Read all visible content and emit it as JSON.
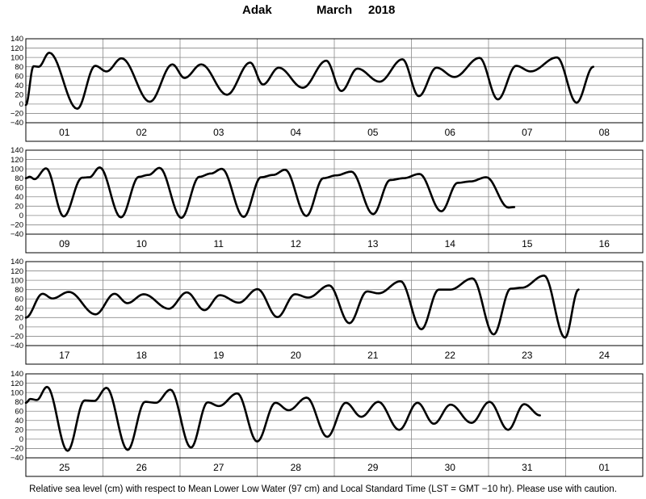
{
  "chart_data": {
    "type": "line",
    "station": "Adak",
    "month": "March",
    "year": "2018",
    "footer": "Relative sea level (cm) with respect to Mean Lower Low Water (97 cm) and Local Standard Time (LST = GMT −10 hr). Please use with caution.",
    "yunit": "cm",
    "ylim": [
      -40,
      140
    ],
    "yticks": [
      "140",
      "120",
      "100",
      "80",
      "60",
      "40",
      "20",
      "0",
      "−20",
      "−40"
    ],
    "grid": true,
    "hours_per_day": 24,
    "line_color": "#000000",
    "panels": [
      {
        "days": [
          "01",
          "02",
          "03",
          "04",
          "05",
          "06",
          "07",
          "08"
        ],
        "extrema": [
          [
            0,
            -2
          ],
          [
            2.4,
            81
          ],
          [
            4,
            80
          ],
          [
            7.3,
            110
          ],
          [
            16,
            -10
          ],
          [
            21.6,
            82
          ],
          [
            25.1,
            70
          ],
          [
            29.8,
            98
          ],
          [
            38.6,
            5
          ],
          [
            45.6,
            85
          ],
          [
            49.4,
            56
          ],
          [
            54.6,
            85
          ],
          [
            62.6,
            20
          ],
          [
            69.8,
            89
          ],
          [
            73.8,
            42
          ],
          [
            78.7,
            78
          ],
          [
            86.2,
            35
          ],
          [
            93.5,
            93
          ],
          [
            98.2,
            28
          ],
          [
            103.2,
            76
          ],
          [
            110.1,
            48
          ],
          [
            117.2,
            96
          ],
          [
            122.3,
            17
          ],
          [
            127.8,
            78
          ],
          [
            133.4,
            58
          ],
          [
            141.2,
            99
          ],
          [
            146.9,
            10
          ],
          [
            152.6,
            82
          ],
          [
            157.1,
            70
          ],
          [
            165.3,
            100
          ],
          [
            171.4,
            3
          ],
          [
            176.6,
            80
          ]
        ]
      },
      {
        "days": [
          "09",
          "10",
          "11",
          "12",
          "13",
          "14",
          "15",
          "16"
        ],
        "extrema": [
          [
            0,
            80
          ],
          [
            1.2,
            83
          ],
          [
            2.7,
            78
          ],
          [
            6.3,
            101
          ],
          [
            11.8,
            -2
          ],
          [
            17.5,
            81
          ],
          [
            19.8,
            82
          ],
          [
            23,
            103
          ],
          [
            29.6,
            -4
          ],
          [
            35.2,
            83
          ],
          [
            38.2,
            87
          ],
          [
            41.6,
            102
          ],
          [
            48.4,
            -5
          ],
          [
            54,
            83
          ],
          [
            57.6,
            90
          ],
          [
            61,
            100
          ],
          [
            67.8,
            -3
          ],
          [
            73.2,
            82
          ],
          [
            77,
            87
          ],
          [
            80.7,
            98
          ],
          [
            87.3,
            -1
          ],
          [
            92.6,
            80
          ],
          [
            96.6,
            86
          ],
          [
            101.3,
            94
          ],
          [
            108.1,
            3
          ],
          [
            113.4,
            76
          ],
          [
            117.6,
            80
          ],
          [
            122.5,
            89
          ],
          [
            129.3,
            9
          ],
          [
            134.4,
            70
          ],
          [
            138.4,
            73
          ],
          [
            143.3,
            82
          ],
          [
            150.2,
            17
          ],
          [
            152,
            18
          ]
        ]
      },
      {
        "days": [
          "17",
          "18",
          "19",
          "20",
          "21",
          "22",
          "23",
          "24"
        ],
        "extrema": [
          [
            0,
            20
          ],
          [
            5.2,
            71
          ],
          [
            8.3,
            61
          ],
          [
            13.4,
            75
          ],
          [
            21.7,
            27
          ],
          [
            27.6,
            71
          ],
          [
            31.6,
            51
          ],
          [
            36.7,
            70
          ],
          [
            44.5,
            39
          ],
          [
            50.1,
            74
          ],
          [
            55.6,
            36
          ],
          [
            60.4,
            68
          ],
          [
            66.3,
            52
          ],
          [
            72.1,
            81
          ],
          [
            78.3,
            21
          ],
          [
            83.8,
            70
          ],
          [
            87.9,
            63
          ],
          [
            94.4,
            89
          ],
          [
            100.7,
            8
          ],
          [
            106.2,
            76
          ],
          [
            109.8,
            72
          ],
          [
            116.6,
            98
          ],
          [
            123.1,
            -5
          ],
          [
            128.5,
            80
          ],
          [
            132.1,
            80
          ],
          [
            139,
            104
          ],
          [
            145.6,
            -16
          ],
          [
            150.9,
            82
          ],
          [
            154.4,
            84
          ],
          [
            161.3,
            110
          ],
          [
            167.8,
            -23
          ],
          [
            172,
            80
          ]
        ]
      },
      {
        "days": [
          "25",
          "26",
          "27",
          "28",
          "29",
          "30",
          "31",
          "01"
        ],
        "extrema": [
          [
            0,
            78
          ],
          [
            1.4,
            86
          ],
          [
            3.4,
            84
          ],
          [
            6.6,
            112
          ],
          [
            13,
            -25
          ],
          [
            18.3,
            83
          ],
          [
            21.3,
            82
          ],
          [
            25.1,
            110
          ],
          [
            31.7,
            -23
          ],
          [
            37.1,
            80
          ],
          [
            40.5,
            78
          ],
          [
            45,
            106
          ],
          [
            51.4,
            -18
          ],
          [
            56.6,
            79
          ],
          [
            60.1,
            71
          ],
          [
            65.8,
            98
          ],
          [
            72,
            -5
          ],
          [
            77.7,
            78
          ],
          [
            81.8,
            62
          ],
          [
            87.4,
            89
          ],
          [
            93.8,
            5
          ],
          [
            99.6,
            78
          ],
          [
            104.4,
            48
          ],
          [
            109.7,
            80
          ],
          [
            116.2,
            20
          ],
          [
            121.9,
            78
          ],
          [
            127,
            33
          ],
          [
            132.2,
            74
          ],
          [
            138.7,
            35
          ],
          [
            144.3,
            80
          ],
          [
            150.1,
            20
          ],
          [
            155.1,
            75
          ],
          [
            160,
            51
          ]
        ]
      }
    ]
  }
}
